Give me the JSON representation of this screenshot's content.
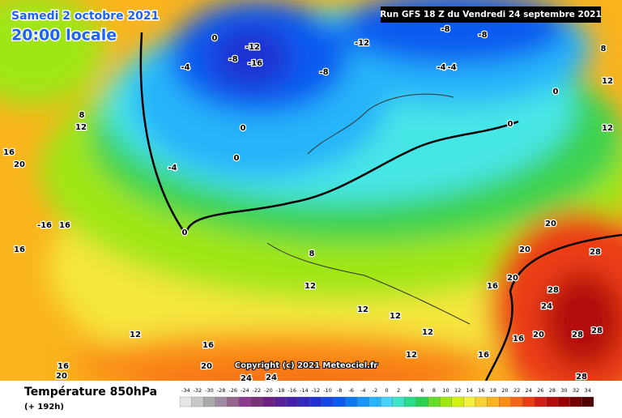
{
  "header": {
    "date": "Samedi 2 octobre 2021",
    "time": "20:00 locale",
    "run": "Run GFS 18 Z du Vendredi 24 septembre 2021"
  },
  "copyright": "Copyright (c) 2021 Meteociel.fr",
  "footer": {
    "title": "Température 850hPa",
    "lead": "(+ 192h)"
  },
  "map_labels": [
    "-12",
    "-16",
    "-8",
    "-8",
    "-12",
    "-8",
    "-8",
    "-4",
    "-4",
    "0",
    "0",
    "12",
    "12",
    "8",
    "0",
    "0",
    "-4",
    "0",
    "8",
    "12",
    "12",
    "12",
    "12",
    "12",
    "16",
    "16",
    "16",
    "20",
    "20",
    "20",
    "28",
    "28",
    "24",
    "28",
    "28",
    "28",
    "20",
    "16",
    "20",
    "-16",
    "16",
    "16",
    "12",
    "16",
    "20",
    "24",
    "24",
    "16",
    "20",
    "8",
    "12",
    "-4",
    "0"
  ],
  "legend": {
    "values": [
      -34,
      -32,
      -30,
      -28,
      -26,
      -24,
      -22,
      -20,
      -18,
      -16,
      -14,
      -12,
      -10,
      -8,
      -6,
      -4,
      -2,
      0,
      2,
      4,
      6,
      8,
      10,
      12,
      14,
      16,
      18,
      20,
      22,
      24,
      26,
      28,
      30,
      32,
      34
    ],
    "colors": [
      "#e6e6e6",
      "#c8c8c8",
      "#aaaaaa",
      "#a08ca0",
      "#96648c",
      "#8c3c8c",
      "#783278",
      "#6e1e82",
      "#5a1e96",
      "#461eaa",
      "#3228be",
      "#1e32d2",
      "#1446e6",
      "#0a5af0",
      "#0a78f0",
      "#1496f5",
      "#28b4fa",
      "#46d2fa",
      "#3ce6c8",
      "#28dc8c",
      "#28d250",
      "#64dc28",
      "#a0e614",
      "#d2f014",
      "#f5f03c",
      "#fad232",
      "#fab41e",
      "#fa8c14",
      "#f56414",
      "#eb3c14",
      "#d21e14",
      "#b40a0a",
      "#960000",
      "#730000",
      "#500000"
    ]
  }
}
